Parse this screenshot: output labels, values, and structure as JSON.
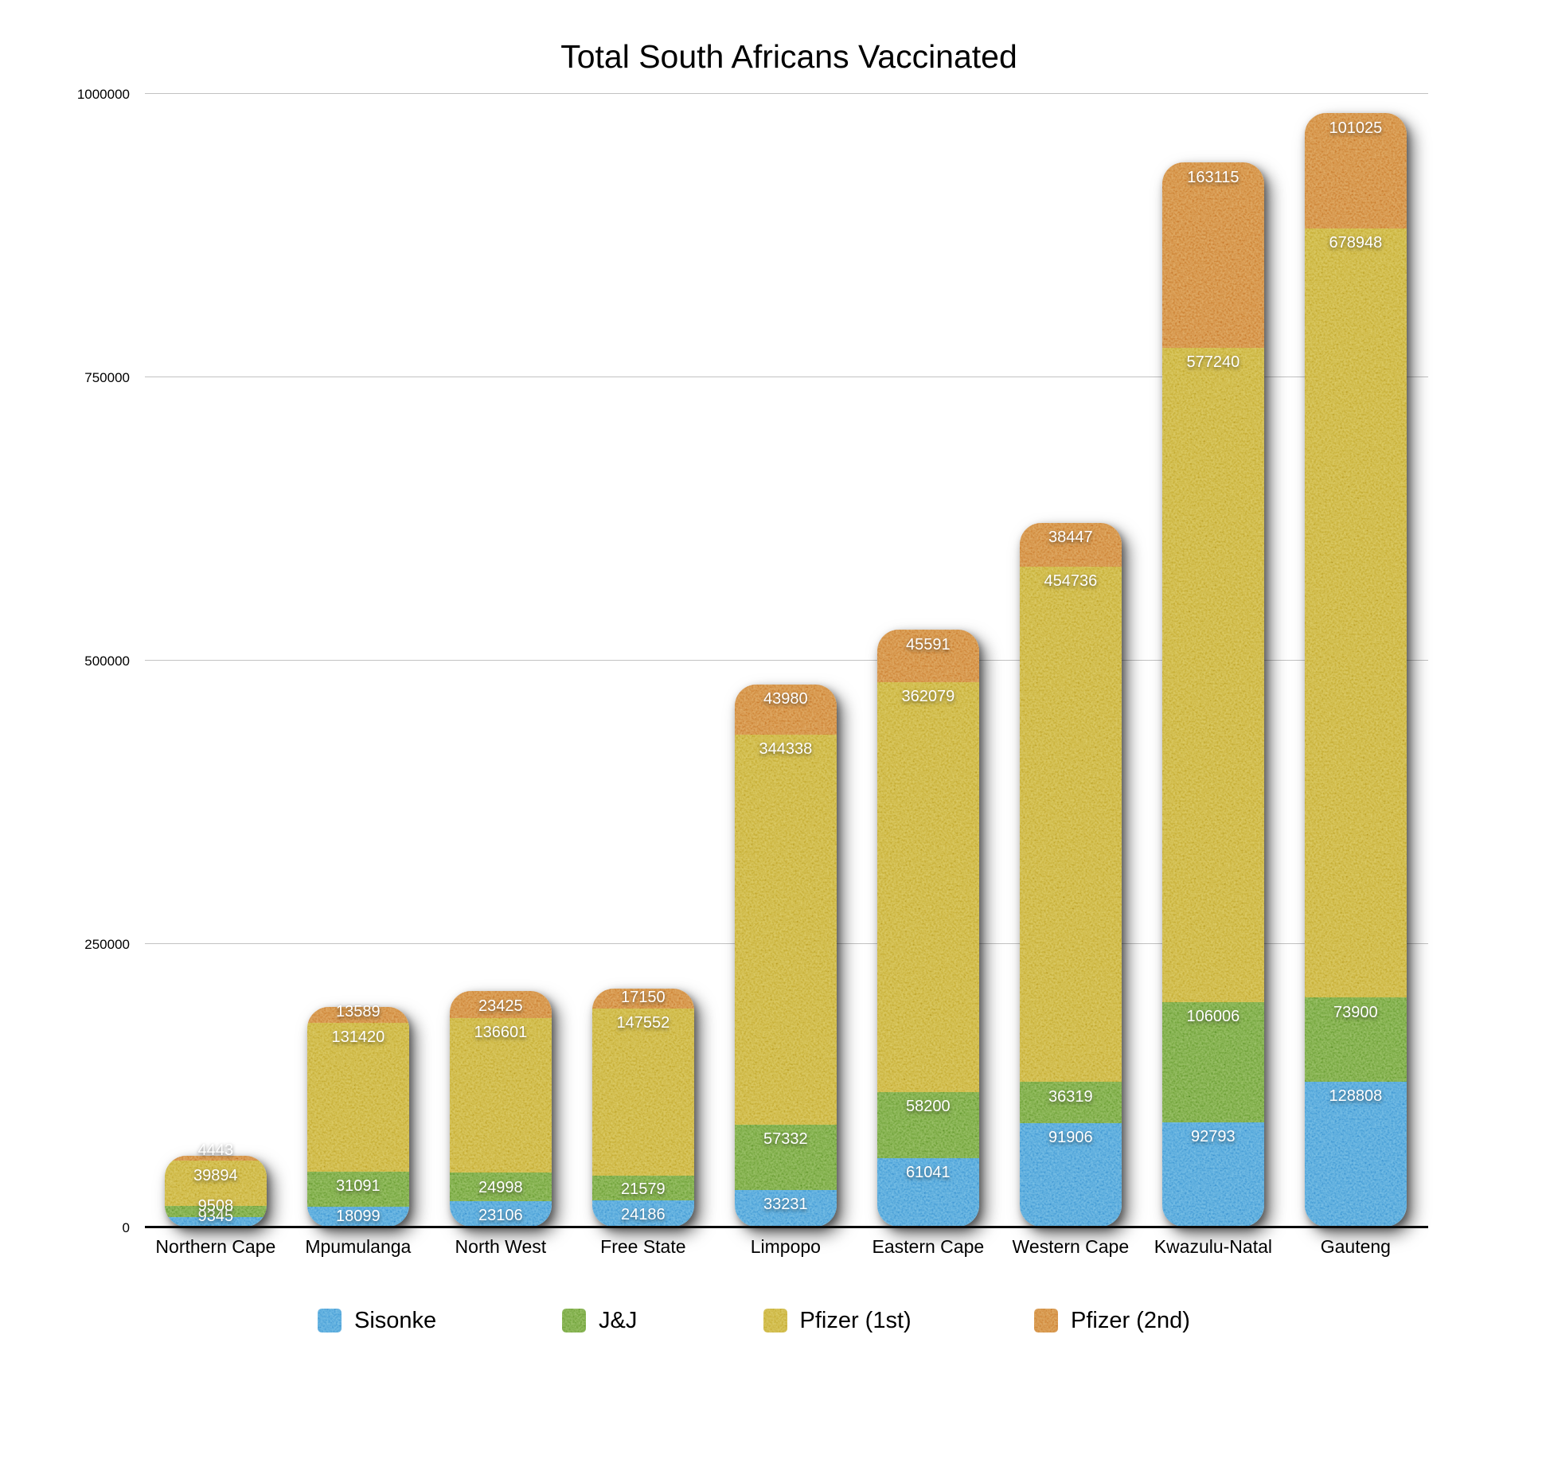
{
  "chart_data": {
    "type": "bar",
    "stacked": true,
    "title": "Total South Africans Vaccinated",
    "categories": [
      "Northern Cape",
      "Mpumulanga",
      "North West",
      "Free State",
      "Limpopo",
      "Eastern Cape",
      "Western Cape",
      "Kwazulu-Natal",
      "Gauteng"
    ],
    "series": [
      {
        "name": "Sisonke",
        "color": "#4ba1d8",
        "values": [
          9345,
          18099,
          23106,
          24186,
          33231,
          61041,
          91906,
          92793,
          128808
        ]
      },
      {
        "name": "J&J",
        "color": "#73a53c",
        "values": [
          9508,
          31091,
          24998,
          21579,
          57332,
          58200,
          36319,
          106006,
          73900
        ]
      },
      {
        "name": "Pfizer (1st)",
        "color": "#c9b139",
        "values": [
          39894,
          131420,
          136601,
          147552,
          344338,
          362079,
          454736,
          577240,
          678948
        ]
      },
      {
        "name": "Pfizer (2nd)",
        "color": "#d0883a",
        "values": [
          4443,
          13589,
          23425,
          17150,
          43980,
          45591,
          38447,
          163115,
          101025
        ]
      }
    ],
    "ylabel": "",
    "xlabel": "",
    "ylim": [
      0,
      1000000
    ],
    "y_ticks": [
      "0",
      "250000",
      "500000",
      "750000",
      "1000000"
    ],
    "grid": true,
    "value_labels": true,
    "legend_position": "bottom"
  }
}
